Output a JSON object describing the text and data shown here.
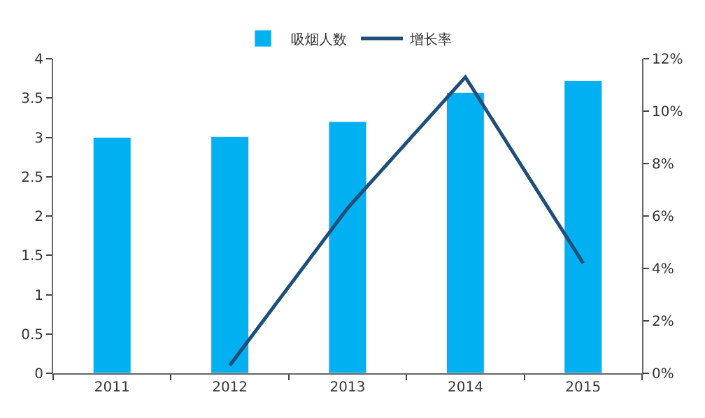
{
  "chart_data": {
    "type": "bar",
    "categories": [
      "2011",
      "2012",
      "2013",
      "2014",
      "2015"
    ],
    "series": [
      {
        "name": "吸烟人数",
        "color": "#00b0f0",
        "values": [
          3.0,
          3.01,
          3.2,
          3.57,
          3.72
        ]
      },
      {
        "name": "增长率",
        "color": "#1f4e79",
        "type": "line",
        "axis": "y2",
        "values": [
          null,
          0.3,
          6.3,
          11.3,
          4.2
        ]
      }
    ],
    "ylim": [
      0,
      4
    ],
    "yticks": [
      0,
      0.5,
      1,
      1.5,
      2,
      2.5,
      3,
      3.5,
      4
    ],
    "y2lim": [
      0,
      12
    ],
    "y2ticks": [
      {
        "value": 0,
        "label": "0%"
      },
      {
        "value": 2,
        "label": "2%"
      },
      {
        "value": 4,
        "label": "4%"
      },
      {
        "value": 6,
        "label": "6%"
      },
      {
        "value": 8,
        "label": "8%"
      },
      {
        "value": 10,
        "label": "10%"
      },
      {
        "value": 12,
        "label": "12%"
      }
    ],
    "legend": "top",
    "marker": "none",
    "line_style": "solid"
  }
}
